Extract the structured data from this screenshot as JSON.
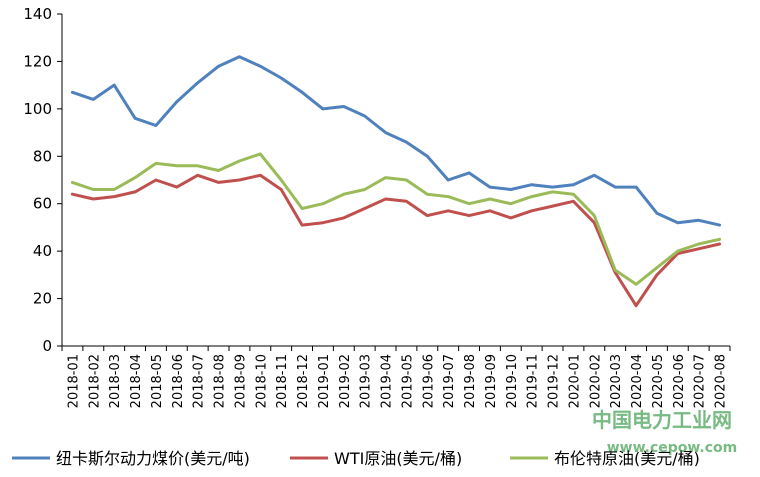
{
  "chart_data": {
    "type": "line",
    "title": "",
    "xlabel": "",
    "ylabel": "",
    "ylim": [
      0,
      140
    ],
    "yticks": [
      0,
      20,
      40,
      60,
      80,
      100,
      120,
      140
    ],
    "grid": false,
    "legend_position": "bottom",
    "x": [
      "2018-01",
      "2018-02",
      "2018-03",
      "2018-04",
      "2018-05",
      "2018-06",
      "2018-07",
      "2018-08",
      "2018-09",
      "2018-10",
      "2018-11",
      "2018-12",
      "2019-01",
      "2019-02",
      "2019-03",
      "2019-04",
      "2019-05",
      "2019-06",
      "2019-07",
      "2019-08",
      "2019-09",
      "2019-10",
      "2019-11",
      "2019-12",
      "2020-01",
      "2020-02",
      "2020-03",
      "2020-04",
      "2020-05",
      "2020-06",
      "2020-07",
      "2020-08"
    ],
    "xtick_labels": [
      "2018-01",
      "2018-02",
      "2018-03",
      "2018-04",
      "2018-05",
      "2018-06",
      "2018-07",
      "2018-08",
      "2018-09",
      "2018-10",
      "2018-11",
      "2018-12",
      "2019-01",
      "2019-02",
      "2019-03",
      "2019-04",
      "2019-05",
      "2019-06",
      "2019-07",
      "2019-08",
      "2019-09",
      "2019-10",
      "2019-11",
      "2019-12",
      "2020-01",
      "2020-02",
      "2020-03",
      "2020-04",
      "2020-05",
      "2020-06",
      "2020-07",
      "2020-08"
    ],
    "series": [
      {
        "name": "纽卡斯尔动力煤价(美元/吨)",
        "color": "#4f81bd",
        "values": [
          107,
          104,
          110,
          96,
          93,
          103,
          111,
          118,
          122,
          118,
          113,
          107,
          100,
          101,
          97,
          90,
          86,
          80,
          70,
          73,
          67,
          66,
          68,
          67,
          68,
          72,
          67,
          67,
          56,
          52,
          53,
          51
        ]
      },
      {
        "name": "WTI原油(美元/桶)",
        "color": "#c0504d",
        "values": [
          64,
          62,
          63,
          65,
          70,
          67,
          72,
          69,
          70,
          72,
          66,
          51,
          52,
          54,
          58,
          62,
          61,
          55,
          57,
          55,
          57,
          54,
          57,
          59,
          61,
          52,
          31,
          17,
          30,
          39,
          41,
          43
        ]
      },
      {
        "name": "布伦特原油(美元/桶)",
        "color": "#9bbb59",
        "values": [
          69,
          66,
          66,
          71,
          77,
          76,
          76,
          74,
          78,
          81,
          70,
          58,
          60,
          64,
          66,
          71,
          70,
          64,
          63,
          60,
          62,
          60,
          63,
          65,
          64,
          55,
          32,
          26,
          33,
          40,
          43,
          45
        ]
      }
    ]
  },
  "watermark": {
    "line1": "中国电力工业网",
    "line2": "www.cepow.com"
  }
}
